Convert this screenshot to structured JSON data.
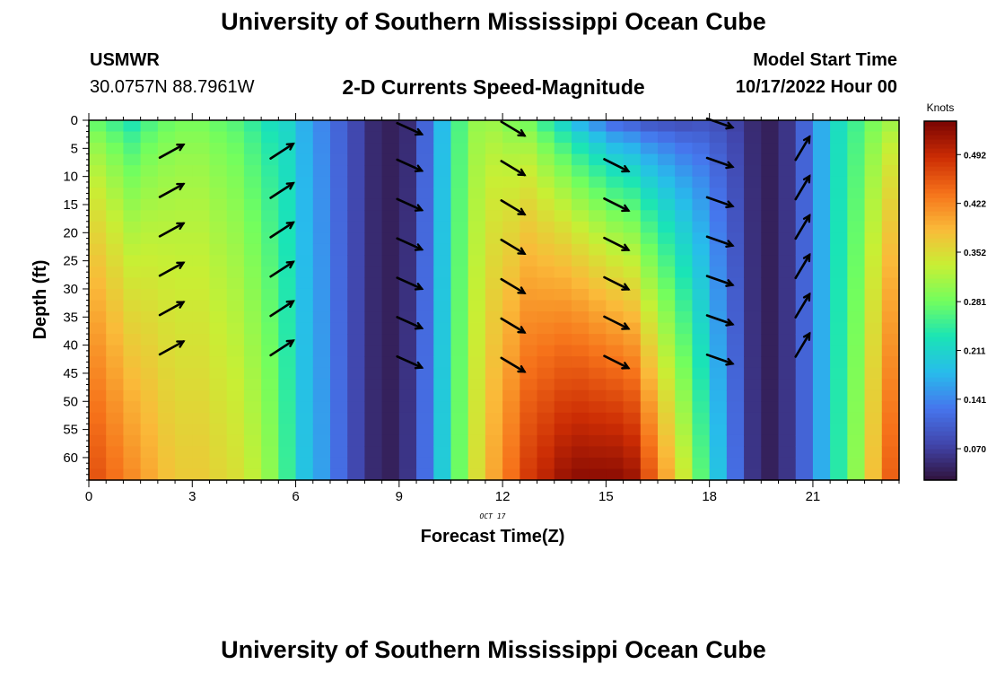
{
  "header": {
    "title": "University of Southern Mississippi Ocean Cube",
    "station": "USMWR",
    "coordinates": "30.0757N  88.7961W",
    "subtitle": "2-D Currents Speed-Magnitude",
    "model_start_label": "Model Start Time",
    "model_start_value": "10/17/2022 Hour 00"
  },
  "footer": {
    "title": "University of Southern Mississippi Ocean Cube"
  },
  "colors": {
    "arrow": "#000000",
    "axis": "#000000"
  },
  "chart_data": {
    "type": "heatmap",
    "xlabel": "Forecast Time(Z)",
    "ylabel": "Depth (ft)",
    "date_label": "OCT 17",
    "colorbar_label": "Knots",
    "x_ticks": [
      0,
      3,
      6,
      9,
      12,
      15,
      18,
      21
    ],
    "y_ticks": [
      0,
      5,
      10,
      15,
      20,
      25,
      30,
      35,
      40,
      45,
      50,
      55,
      60
    ],
    "xlim": [
      0,
      23.5
    ],
    "ylim": [
      0,
      64
    ],
    "colorbar_ticks": [
      0.07,
      0.141,
      0.211,
      0.281,
      0.352,
      0.422,
      0.492
    ],
    "colorbar_range": [
      0.025,
      0.54
    ],
    "columns": [
      {
        "t": 0.0,
        "top": 0.26,
        "bottom": 0.46
      },
      {
        "t": 0.5,
        "top": 0.24,
        "bottom": 0.44
      },
      {
        "t": 1.0,
        "top": 0.22,
        "bottom": 0.42
      },
      {
        "t": 1.5,
        "top": 0.25,
        "bottom": 0.4
      },
      {
        "t": 2.0,
        "top": 0.27,
        "bottom": 0.38
      },
      {
        "t": 2.5,
        "top": 0.28,
        "bottom": 0.37
      },
      {
        "t": 3.0,
        "top": 0.28,
        "bottom": 0.37
      },
      {
        "t": 3.5,
        "top": 0.27,
        "bottom": 0.36
      },
      {
        "t": 4.0,
        "top": 0.26,
        "bottom": 0.35
      },
      {
        "t": 4.5,
        "top": 0.24,
        "bottom": 0.33
      },
      {
        "t": 5.0,
        "top": 0.22,
        "bottom": 0.3
      },
      {
        "t": 5.5,
        "top": 0.21,
        "bottom": 0.25
      },
      {
        "t": 6.0,
        "top": 0.17,
        "bottom": 0.19
      },
      {
        "t": 6.5,
        "top": 0.14,
        "bottom": 0.16
      },
      {
        "t": 7.0,
        "top": 0.11,
        "bottom": 0.12
      },
      {
        "t": 7.5,
        "top": 0.08,
        "bottom": 0.08
      },
      {
        "t": 8.0,
        "top": 0.05,
        "bottom": 0.05
      },
      {
        "t": 8.5,
        "top": 0.04,
        "bottom": 0.04
      },
      {
        "t": 9.0,
        "top": 0.05,
        "bottom": 0.06
      },
      {
        "t": 9.5,
        "top": 0.11,
        "bottom": 0.12
      },
      {
        "t": 10.0,
        "top": 0.18,
        "bottom": 0.2
      },
      {
        "t": 10.5,
        "top": 0.26,
        "bottom": 0.28
      },
      {
        "t": 11.0,
        "top": 0.3,
        "bottom": 0.35
      },
      {
        "t": 11.5,
        "top": 0.3,
        "bottom": 0.4
      },
      {
        "t": 12.0,
        "top": 0.28,
        "bottom": 0.44
      },
      {
        "t": 12.5,
        "top": 0.27,
        "bottom": 0.48
      },
      {
        "t": 13.0,
        "top": 0.23,
        "bottom": 0.5
      },
      {
        "t": 13.5,
        "top": 0.19,
        "bottom": 0.52
      },
      {
        "t": 14.0,
        "top": 0.15,
        "bottom": 0.53
      },
      {
        "t": 14.5,
        "top": 0.12,
        "bottom": 0.53
      },
      {
        "t": 15.0,
        "top": 0.09,
        "bottom": 0.53
      },
      {
        "t": 15.5,
        "top": 0.08,
        "bottom": 0.52
      },
      {
        "t": 16.0,
        "top": 0.07,
        "bottom": 0.46
      },
      {
        "t": 16.5,
        "top": 0.07,
        "bottom": 0.4
      },
      {
        "t": 17.0,
        "top": 0.07,
        "bottom": 0.34
      },
      {
        "t": 17.5,
        "top": 0.08,
        "bottom": 0.27
      },
      {
        "t": 18.0,
        "top": 0.08,
        "bottom": 0.19
      },
      {
        "t": 18.5,
        "top": 0.07,
        "bottom": 0.12
      },
      {
        "t": 19.0,
        "top": 0.05,
        "bottom": 0.06
      },
      {
        "t": 19.5,
        "top": 0.04,
        "bottom": 0.04
      },
      {
        "t": 20.0,
        "top": 0.06,
        "bottom": 0.06
      },
      {
        "t": 20.5,
        "top": 0.11,
        "bottom": 0.11
      },
      {
        "t": 21.0,
        "top": 0.17,
        "bottom": 0.17
      },
      {
        "t": 21.5,
        "top": 0.22,
        "bottom": 0.24
      },
      {
        "t": 22.0,
        "top": 0.25,
        "bottom": 0.3
      },
      {
        "t": 22.5,
        "top": 0.28,
        "bottom": 0.38
      },
      {
        "t": 23.0,
        "top": 0.3,
        "bottom": 0.45
      }
    ],
    "arrows": [
      {
        "t": 2.4,
        "depths": [
          5.5,
          12.5,
          19.5,
          26.5,
          33.5,
          40.5
        ],
        "dx": 1,
        "dy": -0.55
      },
      {
        "t": 5.6,
        "depths": [
          5.5,
          12.5,
          19.5,
          26.5,
          33.5,
          40.5
        ],
        "dx": 1,
        "dy": -0.65
      },
      {
        "t": 9.3,
        "depths": [
          1.5,
          8.0,
          15.0,
          22.0,
          29.0,
          36.0,
          43.0
        ],
        "dx": 1,
        "dy": 0.45
      },
      {
        "t": 12.3,
        "depths": [
          1.5,
          8.5,
          15.5,
          22.5,
          29.5,
          36.5,
          43.5
        ],
        "dx": 1,
        "dy": 0.6
      },
      {
        "t": 15.3,
        "depths": [
          8.0,
          15.0,
          22.0,
          29.0,
          36.0,
          43.0
        ],
        "dx": 1,
        "dy": 0.5
      },
      {
        "t": 18.3,
        "depths": [
          0.5,
          7.5,
          14.5,
          21.5,
          28.5,
          35.5,
          42.5
        ],
        "dx": 1,
        "dy": 0.35
      },
      {
        "t": 20.7,
        "depths": [
          5.0,
          12.0,
          19.0,
          26.0,
          33.0,
          40.0
        ],
        "dx": 0.6,
        "dy": -1
      }
    ]
  }
}
